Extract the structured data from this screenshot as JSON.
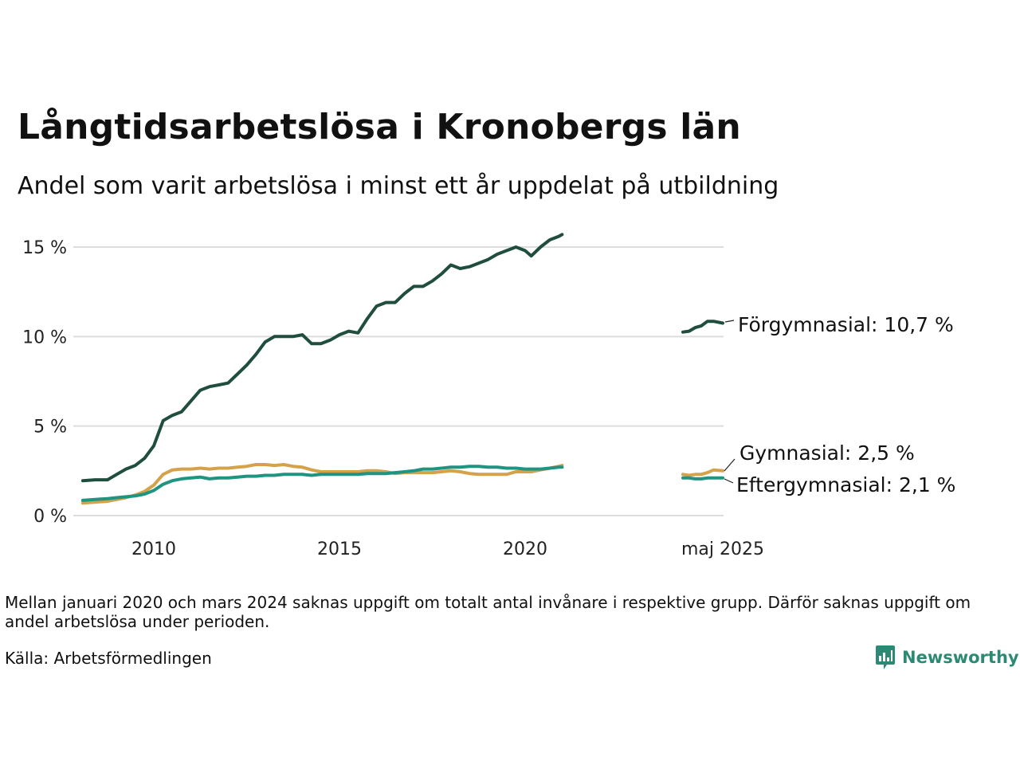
{
  "header": {
    "title": "Långtidsarbetslösa i Kronobergs län",
    "subtitle": "Andel som varit arbetslösa i minst ett år uppdelat på utbildning"
  },
  "footer": {
    "note": "Mellan januari 2020 och mars 2024 saknas uppgift om totalt antal invånare i respektive grupp. Därför saknas uppgift om andel arbetslösa under perioden.",
    "source": "Källa: Arbetsförmedlingen",
    "logo_text": "Newsworthy",
    "logo_icon": "bar-chart-speech-bubble-icon"
  },
  "chart_data": {
    "type": "line",
    "y_ticks": [
      0,
      5,
      10,
      15
    ],
    "y_tick_labels": [
      "0 %",
      "5 %",
      "10 %",
      "15 %"
    ],
    "ylim": [
      0,
      15.9
    ],
    "x_ticks": [
      "2010",
      "2015",
      "2020",
      "maj 2025"
    ],
    "grid": true,
    "colors": {
      "forgymnasial": "#1f4d3e",
      "gymnasial": "#d4a24a",
      "eftergymnasial": "#1f9481",
      "grid": "#dddddd"
    },
    "series": [
      {
        "key": "forgymnasial",
        "label_name": "Förgymnasial:",
        "label_value": "10,7 %",
        "segments": [
          {
            "x": [
              "2008-02",
              "2008-06",
              "2008-10",
              "2009-01",
              "2009-04",
              "2009-07",
              "2009-10",
              "2010-01",
              "2010-04",
              "2010-07",
              "2010-10",
              "2011-01",
              "2011-04",
              "2011-07",
              "2011-10",
              "2012-01",
              "2012-04",
              "2012-07",
              "2012-10",
              "2013-01",
              "2013-04",
              "2013-07",
              "2013-10",
              "2014-01",
              "2014-04",
              "2014-07",
              "2014-10",
              "2015-01",
              "2015-04",
              "2015-07",
              "2015-10",
              "2016-01",
              "2016-04",
              "2016-07",
              "2016-10",
              "2017-01",
              "2017-04",
              "2017-07",
              "2017-10",
              "2018-01",
              "2018-04",
              "2018-07",
              "2018-10",
              "2019-01",
              "2019-04",
              "2019-07",
              "2019-10",
              "2020-01",
              "2020-03",
              "2020-06",
              "2020-09",
              "2020-12",
              "2021-01"
            ],
            "y": [
              1.95,
              2.0,
              2.0,
              2.3,
              2.6,
              2.8,
              3.2,
              3.9,
              5.3,
              5.6,
              5.8,
              6.4,
              7.0,
              7.2,
              7.3,
              7.4,
              7.9,
              8.4,
              9.0,
              9.7,
              10.0,
              10.0,
              10.0,
              10.1,
              9.6,
              9.6,
              9.8,
              10.1,
              10.3,
              10.2,
              11.0,
              11.7,
              11.9,
              11.9,
              12.4,
              12.8,
              12.8,
              13.1,
              13.5,
              14.0,
              13.8,
              13.9,
              14.1,
              14.3,
              14.6,
              14.8,
              15.0,
              14.8,
              14.5,
              15.0,
              15.4,
              15.6,
              15.7
            ]
          },
          {
            "x": [
              "2024-04",
              "2024-06",
              "2024-08",
              "2024-10",
              "2024-12",
              "2025-02",
              "2025-05"
            ],
            "y": [
              10.25,
              10.3,
              10.5,
              10.6,
              10.85,
              10.85,
              10.75
            ]
          }
        ]
      },
      {
        "key": "gymnasial",
        "label_name": "Gymnasial:",
        "label_value": "2,5 %",
        "segments": [
          {
            "x": [
              "2008-02",
              "2008-06",
              "2008-10",
              "2009-01",
              "2009-04",
              "2009-07",
              "2009-10",
              "2010-01",
              "2010-04",
              "2010-07",
              "2010-10",
              "2011-01",
              "2011-04",
              "2011-07",
              "2011-10",
              "2012-01",
              "2012-04",
              "2012-07",
              "2012-10",
              "2013-01",
              "2013-04",
              "2013-07",
              "2013-10",
              "2014-01",
              "2014-04",
              "2014-07",
              "2014-10",
              "2015-01",
              "2015-04",
              "2015-07",
              "2015-10",
              "2016-01",
              "2016-04",
              "2016-07",
              "2016-10",
              "2017-01",
              "2017-04",
              "2017-07",
              "2017-10",
              "2018-01",
              "2018-04",
              "2018-07",
              "2018-10",
              "2019-01",
              "2019-04",
              "2019-07",
              "2019-10",
              "2020-01",
              "2020-03",
              "2020-06",
              "2020-09",
              "2020-12",
              "2021-01"
            ],
            "y": [
              0.7,
              0.75,
              0.8,
              0.9,
              1.0,
              1.15,
              1.35,
              1.7,
              2.3,
              2.55,
              2.6,
              2.6,
              2.65,
              2.6,
              2.65,
              2.65,
              2.7,
              2.75,
              2.85,
              2.85,
              2.8,
              2.85,
              2.75,
              2.7,
              2.55,
              2.45,
              2.45,
              2.45,
              2.45,
              2.45,
              2.5,
              2.5,
              2.45,
              2.35,
              2.4,
              2.4,
              2.4,
              2.4,
              2.45,
              2.5,
              2.45,
              2.35,
              2.3,
              2.3,
              2.3,
              2.3,
              2.45,
              2.45,
              2.45,
              2.55,
              2.65,
              2.75,
              2.8
            ]
          },
          {
            "x": [
              "2024-04",
              "2024-06",
              "2024-08",
              "2024-10",
              "2024-12",
              "2025-02",
              "2025-05"
            ],
            "y": [
              2.3,
              2.25,
              2.3,
              2.3,
              2.4,
              2.55,
              2.5
            ]
          }
        ]
      },
      {
        "key": "eftergymnasial",
        "label_name": "Eftergymnasial:",
        "label_value": "2,1 %",
        "segments": [
          {
            "x": [
              "2008-02",
              "2008-06",
              "2008-10",
              "2009-01",
              "2009-04",
              "2009-07",
              "2009-10",
              "2010-01",
              "2010-04",
              "2010-07",
              "2010-10",
              "2011-01",
              "2011-04",
              "2011-07",
              "2011-10",
              "2012-01",
              "2012-04",
              "2012-07",
              "2012-10",
              "2013-01",
              "2013-04",
              "2013-07",
              "2013-10",
              "2014-01",
              "2014-04",
              "2014-07",
              "2014-10",
              "2015-01",
              "2015-04",
              "2015-07",
              "2015-10",
              "2016-01",
              "2016-04",
              "2016-07",
              "2016-10",
              "2017-01",
              "2017-04",
              "2017-07",
              "2017-10",
              "2018-01",
              "2018-04",
              "2018-07",
              "2018-10",
              "2019-01",
              "2019-04",
              "2019-07",
              "2019-10",
              "2020-01",
              "2020-03",
              "2020-06",
              "2020-09",
              "2020-12",
              "2021-01"
            ],
            "y": [
              0.85,
              0.9,
              0.95,
              1.0,
              1.05,
              1.1,
              1.2,
              1.4,
              1.75,
              1.95,
              2.05,
              2.1,
              2.15,
              2.05,
              2.1,
              2.1,
              2.15,
              2.2,
              2.2,
              2.25,
              2.25,
              2.3,
              2.3,
              2.3,
              2.25,
              2.3,
              2.3,
              2.3,
              2.3,
              2.3,
              2.35,
              2.35,
              2.35,
              2.4,
              2.45,
              2.5,
              2.6,
              2.6,
              2.65,
              2.7,
              2.7,
              2.75,
              2.75,
              2.7,
              2.7,
              2.65,
              2.65,
              2.6,
              2.6,
              2.6,
              2.65,
              2.7,
              2.7
            ]
          },
          {
            "x": [
              "2024-04",
              "2024-06",
              "2024-08",
              "2024-10",
              "2024-12",
              "2025-02",
              "2025-05"
            ],
            "y": [
              2.1,
              2.1,
              2.05,
              2.05,
              2.1,
              2.1,
              2.1
            ]
          }
        ]
      }
    ]
  }
}
